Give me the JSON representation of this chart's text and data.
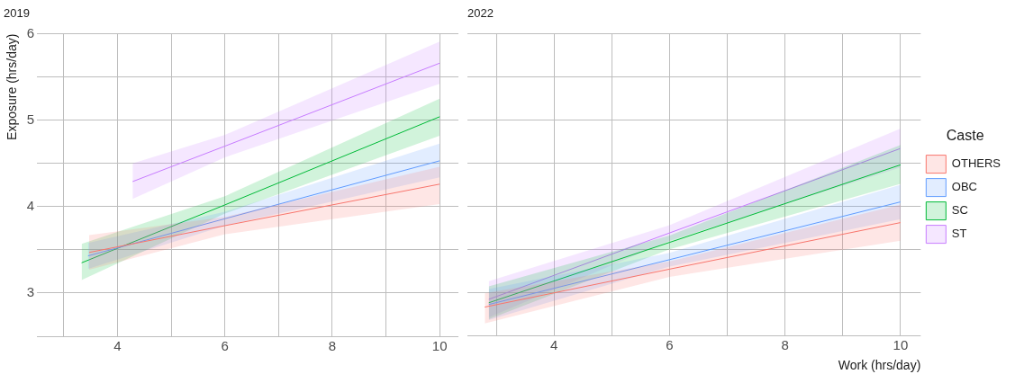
{
  "chart_data": [
    {
      "type": "line",
      "title": "2019",
      "ylabel": "Exposure (hrs/day)",
      "xlim": [
        2.5,
        10.35
      ],
      "ylim": [
        2.5,
        6
      ],
      "xticks": [
        {
          "value": 3,
          "label": null
        },
        4,
        {
          "value": 5,
          "label": null
        },
        6,
        {
          "value": 7,
          "label": null
        },
        8,
        {
          "value": 9,
          "label": null
        },
        10
      ],
      "yticks": [
        {
          "value": 2.5,
          "label": null
        },
        3,
        {
          "value": 3.5,
          "label": null
        },
        4,
        {
          "value": 4.5,
          "label": null
        },
        5,
        {
          "value": 5.5,
          "label": null
        },
        6
      ],
      "grid": true,
      "legend": false,
      "marker": "none",
      "line_style": "solid",
      "series": [
        {
          "color": "#f8766d",
          "x": [
            3.47,
            6,
            10
          ],
          "values": [
            3.47,
            3.78,
            4.26
          ],
          "lower": [
            3.27,
            3.68,
            4.03
          ],
          "upper": [
            3.67,
            3.88,
            4.46
          ]
        },
        {
          "color": "#619cff",
          "x": [
            3.45,
            6,
            10
          ],
          "values": [
            3.43,
            3.86,
            4.53
          ],
          "lower": [
            3.28,
            3.78,
            4.34
          ],
          "upper": [
            3.58,
            3.94,
            4.73
          ]
        },
        {
          "color": "#00ba38",
          "x": [
            3.33,
            6,
            10
          ],
          "values": [
            3.35,
            4.02,
            5.04
          ],
          "lower": [
            3.15,
            3.92,
            4.82
          ],
          "upper": [
            3.57,
            4.12,
            5.25
          ]
        },
        {
          "color": "#c77cff",
          "x": [
            4.28,
            6,
            10
          ],
          "values": [
            4.29,
            4.7,
            5.66
          ],
          "lower": [
            4.09,
            4.57,
            5.42
          ],
          "upper": [
            4.5,
            4.83,
            5.91
          ]
        }
      ]
    },
    {
      "type": "line",
      "title": "2022",
      "xlabel": "Work (hrs/day)",
      "legend_title": "Caste",
      "xlim": [
        2.5,
        10.35
      ],
      "ylim": [
        2.5,
        6
      ],
      "xticks": [
        {
          "value": 3,
          "label": null
        },
        4,
        {
          "value": 5,
          "label": null
        },
        6,
        {
          "value": 7,
          "label": null
        },
        8,
        {
          "value": 9,
          "label": null
        },
        10
      ],
      "yticks": [
        {
          "value": 2.5,
          "label": null
        },
        3,
        {
          "value": 3.5,
          "label": null
        },
        4,
        {
          "value": 4.5,
          "label": null
        },
        5,
        {
          "value": 5.5,
          "label": null
        },
        6
      ],
      "tick_labels": "x",
      "grid": true,
      "legend": "right",
      "marker": "none",
      "line_style": "solid",
      "series": [
        {
          "name": "OTHERS",
          "color": "#f8766d",
          "x": [
            2.8,
            6,
            10
          ],
          "values": [
            2.83,
            3.27,
            3.81
          ],
          "lower": [
            2.64,
            3.18,
            3.6
          ],
          "upper": [
            2.99,
            3.36,
            4.02
          ]
        },
        {
          "name": "OBC",
          "color": "#619cff",
          "x": [
            2.87,
            6,
            10
          ],
          "values": [
            2.86,
            3.38,
            4.05
          ],
          "lower": [
            2.68,
            3.3,
            3.85
          ],
          "upper": [
            3.04,
            3.46,
            4.25
          ]
        },
        {
          "name": "SC",
          "color": "#00ba38",
          "x": [
            2.87,
            6,
            10
          ],
          "values": [
            2.88,
            3.58,
            4.48
          ],
          "lower": [
            2.69,
            3.5,
            4.26
          ],
          "upper": [
            3.07,
            3.66,
            4.71
          ]
        },
        {
          "name": "ST",
          "color": "#c77cff",
          "x": [
            2.87,
            6,
            10
          ],
          "values": [
            2.92,
            3.69,
            4.67
          ],
          "lower": [
            2.71,
            3.6,
            4.45
          ],
          "upper": [
            3.13,
            3.78,
            4.9
          ]
        }
      ]
    }
  ]
}
